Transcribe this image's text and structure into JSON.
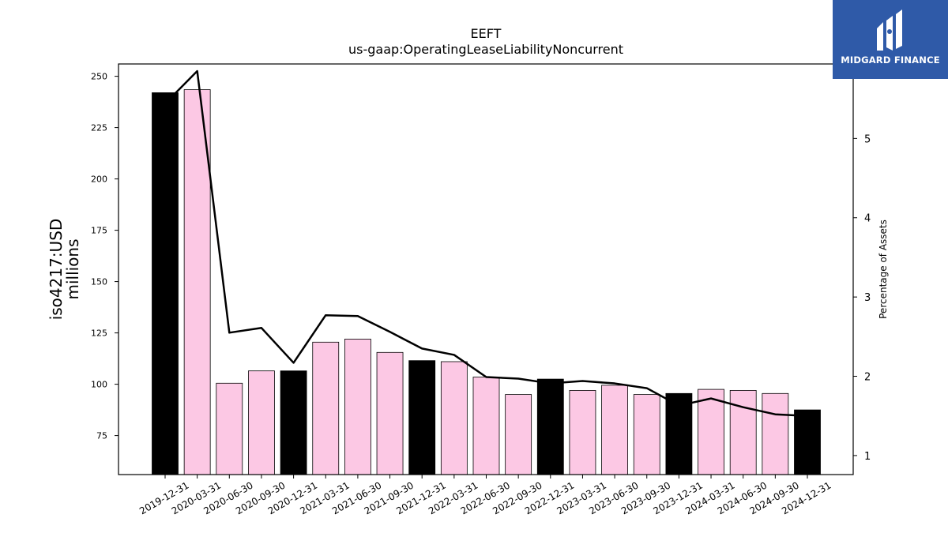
{
  "chart_data": {
    "type": "bar",
    "title": "EEFT",
    "subtitle": "us-gaap:OperatingLeaseLiabilityNoncurrent",
    "ylabel": "iso4217:USD\nmillions",
    "ylabel_lines": [
      "iso4217:USD",
      "millions"
    ],
    "y2label": "Percentage of Assets",
    "ylim": [
      56,
      256
    ],
    "y2lim": [
      0.76,
      5.94
    ],
    "yticks": [
      75,
      100,
      125,
      150,
      175,
      200,
      225,
      250
    ],
    "y2ticks": [
      1,
      2,
      3,
      4,
      5
    ],
    "grid": false,
    "categories": [
      "2019-12-31",
      "2020-03-31",
      "2020-06-30",
      "2020-09-30",
      "2020-12-31",
      "2021-03-31",
      "2021-06-30",
      "2021-09-30",
      "2021-12-31",
      "2022-03-31",
      "2022-06-30",
      "2022-09-30",
      "2022-12-31",
      "2023-03-31",
      "2023-06-30",
      "2023-09-30",
      "2023-12-31",
      "2024-03-31",
      "2024-06-30",
      "2024-09-30",
      "2024-12-31"
    ],
    "values": [
      242,
      243.5,
      100.5,
      106.5,
      106.5,
      120.5,
      122,
      115.5,
      111.5,
      111,
      103.5,
      95,
      102.5,
      97,
      99.5,
      95,
      95.5,
      97.5,
      97,
      95.5,
      87.5
    ],
    "bar_colors": [
      "#000000",
      "#fcc8e4",
      "#fcc8e4",
      "#fcc8e4",
      "#000000",
      "#fcc8e4",
      "#fcc8e4",
      "#fcc8e4",
      "#000000",
      "#fcc8e4",
      "#fcc8e4",
      "#fcc8e4",
      "#000000",
      "#fcc8e4",
      "#fcc8e4",
      "#fcc8e4",
      "#000000",
      "#fcc8e4",
      "#fcc8e4",
      "#fcc8e4",
      "#000000"
    ],
    "line_values": [
      5.44,
      5.85,
      2.55,
      2.61,
      2.17,
      2.77,
      2.76,
      2.56,
      2.35,
      2.27,
      1.99,
      1.97,
      1.91,
      1.94,
      1.91,
      1.85,
      1.63,
      1.72,
      1.61,
      1.52,
      1.5
    ],
    "line_color": "#000000"
  },
  "logo": {
    "text": "MIDGARD FINANCE",
    "background": "#2f5aa8"
  }
}
